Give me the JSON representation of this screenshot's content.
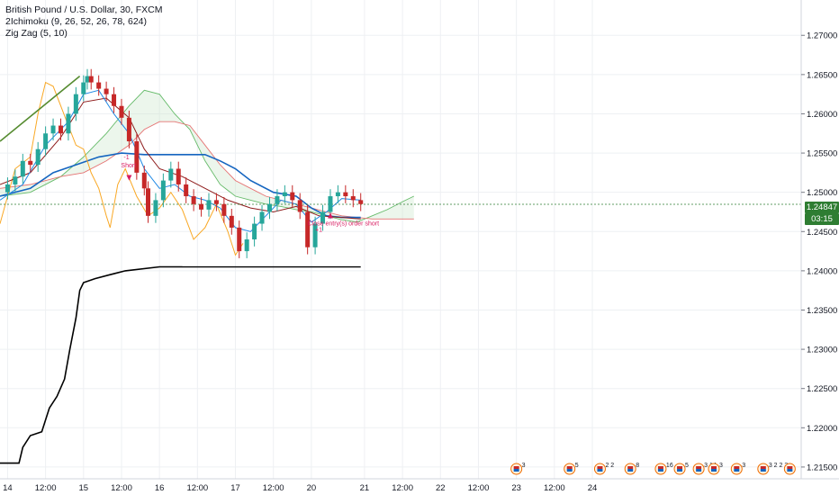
{
  "legend": {
    "symbol": "British Pound / U.S. Dollar, 30, FXCM",
    "ichimoku": "2Ichimoku (9, 26, 52, 26, 78, 624)",
    "zigzag": "Zig Zag (5, 10)"
  },
  "price_tag": {
    "last": "1.24847",
    "countdown": "03:15"
  },
  "annotations": {
    "short_signal": "Short",
    "short_num": "-1",
    "close_label": "Close entry(s) order short",
    "close_num": "+1"
  },
  "colors": {
    "up_candle": "#26a69a",
    "down_candle": "#c62828",
    "tenkan": "#1e88e5",
    "kijun": "#8e1b1b",
    "chikou": "#f9a825",
    "span_a": "#66bb6a",
    "span_b": "#e57373",
    "slow_line": "#1565c0",
    "equity": "#000000",
    "zigzag": "#2e7d32",
    "last_price": "#2e7d32",
    "signal": "#d81b60"
  },
  "events": [
    {
      "x": "20.7",
      "count": "3"
    },
    {
      "x": "21.4",
      "count": "5"
    },
    {
      "x": "21.8",
      "count": "2 2"
    },
    {
      "x": "22.2",
      "count": "8"
    },
    {
      "x": "22.6",
      "count": "16"
    },
    {
      "x": "22.85",
      "count": "5"
    },
    {
      "x": "23.1",
      "count": "3 14"
    },
    {
      "x": "23.3",
      "count": "3"
    },
    {
      "x": "23.6",
      "count": "3"
    },
    {
      "x": "23.95",
      "count": "3 2 2 3"
    },
    {
      "x": "24.3",
      "count": ""
    }
  ],
  "chart_data": {
    "type": "candlestick",
    "title": "British Pound / U.S. Dollar, 30, FXCM",
    "x_unit": "days",
    "xlim": [
      13.9,
      24.45
    ],
    "ylim": [
      1.2135,
      1.2745
    ],
    "y_ticks": [
      "1.27000",
      "1.26500",
      "1.26000",
      "1.25500",
      "1.25000",
      "1.24500",
      "1.24000",
      "1.23500",
      "1.23000",
      "1.22500",
      "1.22000",
      "1.21500"
    ],
    "x_ticks": [
      {
        "x": 14,
        "label": "14"
      },
      {
        "x": 14.5,
        "label": "12:00"
      },
      {
        "x": 15,
        "label": "15"
      },
      {
        "x": 15.5,
        "label": "12:00"
      },
      {
        "x": 16,
        "label": "16"
      },
      {
        "x": 16.5,
        "label": "12:00"
      },
      {
        "x": 17,
        "label": "17"
      },
      {
        "x": 17.5,
        "label": "12:00"
      },
      {
        "x": 18,
        "label": "20"
      },
      {
        "x": 18.7,
        "label": "21"
      },
      {
        "x": 19.2,
        "label": "12:00"
      },
      {
        "x": 19.7,
        "label": "22"
      },
      {
        "x": 20.2,
        "label": "12:00"
      },
      {
        "x": 20.7,
        "label": "23"
      },
      {
        "x": 21.2,
        "label": "12:00"
      },
      {
        "x": 21.7,
        "label": "24"
      }
    ],
    "close_series": [
      [
        13.9,
        1.25
      ],
      [
        14.0,
        1.251
      ],
      [
        14.1,
        1.252
      ],
      [
        14.2,
        1.254
      ],
      [
        14.3,
        1.2535
      ],
      [
        14.4,
        1.2555
      ],
      [
        14.5,
        1.2575
      ],
      [
        14.6,
        1.2585
      ],
      [
        14.7,
        1.2575
      ],
      [
        14.8,
        1.26
      ],
      [
        14.9,
        1.2625
      ],
      [
        15.0,
        1.264
      ],
      [
        15.05,
        1.2648
      ],
      [
        15.1,
        1.264
      ],
      [
        15.2,
        1.2632
      ],
      [
        15.3,
        1.2625
      ],
      [
        15.4,
        1.261
      ],
      [
        15.5,
        1.2595
      ],
      [
        15.6,
        1.2565
      ],
      [
        15.7,
        1.2525
      ],
      [
        15.8,
        1.2505
      ],
      [
        15.85,
        1.247
      ],
      [
        15.95,
        1.249
      ],
      [
        16.05,
        1.2515
      ],
      [
        16.15,
        1.253
      ],
      [
        16.25,
        1.251
      ],
      [
        16.35,
        1.2495
      ],
      [
        16.45,
        1.2485
      ],
      [
        16.55,
        1.2478
      ],
      [
        16.65,
        1.249
      ],
      [
        16.75,
        1.2485
      ],
      [
        16.85,
        1.247
      ],
      [
        16.95,
        1.2455
      ],
      [
        17.05,
        1.2425
      ],
      [
        17.15,
        1.244
      ],
      [
        17.25,
        1.246
      ],
      [
        17.35,
        1.2475
      ],
      [
        17.45,
        1.2485
      ],
      [
        17.55,
        1.2495
      ],
      [
        17.65,
        1.25
      ],
      [
        17.75,
        1.249
      ],
      [
        17.85,
        1.2475
      ],
      [
        17.95,
        1.243
      ],
      [
        18.05,
        1.246
      ],
      [
        18.15,
        1.2475
      ],
      [
        18.25,
        1.2495
      ],
      [
        18.35,
        1.25
      ],
      [
        18.45,
        1.2495
      ],
      [
        18.55,
        1.249
      ],
      [
        18.65,
        1.2485
      ]
    ],
    "tenkan": [
      [
        13.9,
        1.249
      ],
      [
        14.2,
        1.251
      ],
      [
        14.5,
        1.256
      ],
      [
        14.8,
        1.259
      ],
      [
        15.0,
        1.2625
      ],
      [
        15.2,
        1.263
      ],
      [
        15.4,
        1.26
      ],
      [
        15.6,
        1.2575
      ],
      [
        15.8,
        1.253
      ],
      [
        16.0,
        1.2505
      ],
      [
        16.2,
        1.251
      ],
      [
        16.4,
        1.2495
      ],
      [
        16.6,
        1.249
      ],
      [
        16.8,
        1.248
      ],
      [
        17.0,
        1.2455
      ],
      [
        17.2,
        1.245
      ],
      [
        17.4,
        1.247
      ],
      [
        17.6,
        1.249
      ],
      [
        17.8,
        1.2485
      ],
      [
        18.0,
        1.2462
      ],
      [
        18.2,
        1.2475
      ],
      [
        18.4,
        1.2492
      ],
      [
        18.65,
        1.249
      ]
    ],
    "kijun": [
      [
        13.9,
        1.251
      ],
      [
        14.3,
        1.2525
      ],
      [
        14.7,
        1.257
      ],
      [
        15.0,
        1.2615
      ],
      [
        15.3,
        1.262
      ],
      [
        15.6,
        1.2595
      ],
      [
        15.8,
        1.2555
      ],
      [
        16.0,
        1.253
      ],
      [
        16.3,
        1.252
      ],
      [
        16.6,
        1.2505
      ],
      [
        16.9,
        1.249
      ],
      [
        17.2,
        1.248
      ],
      [
        17.5,
        1.2475
      ],
      [
        17.8,
        1.2482
      ],
      [
        18.1,
        1.247
      ],
      [
        18.4,
        1.2468
      ],
      [
        18.65,
        1.2466
      ]
    ],
    "chikou": [
      [
        13.9,
        1.246
      ],
      [
        14.1,
        1.253
      ],
      [
        14.3,
        1.2545
      ],
      [
        14.4,
        1.26
      ],
      [
        14.5,
        1.264
      ],
      [
        14.6,
        1.2635
      ],
      [
        14.7,
        1.261
      ],
      [
        14.8,
        1.2585
      ],
      [
        14.9,
        1.256
      ],
      [
        15.0,
        1.2555
      ],
      [
        15.1,
        1.2525
      ],
      [
        15.2,
        1.2505
      ],
      [
        15.3,
        1.247
      ],
      [
        15.35,
        1.2455
      ],
      [
        15.45,
        1.251
      ],
      [
        15.55,
        1.253
      ],
      [
        15.7,
        1.2495
      ],
      [
        15.85,
        1.247
      ],
      [
        16.0,
        1.248
      ],
      [
        16.15,
        1.25
      ],
      [
        16.3,
        1.2478
      ],
      [
        16.45,
        1.244
      ],
      [
        16.6,
        1.2455
      ],
      [
        16.75,
        1.2485
      ],
      [
        16.9,
        1.245
      ],
      [
        17.0,
        1.242
      ],
      [
        17.1,
        1.2435
      ]
    ],
    "span_a": [
      [
        13.9,
        1.2495
      ],
      [
        14.3,
        1.25
      ],
      [
        14.7,
        1.252
      ],
      [
        15.0,
        1.2545
      ],
      [
        15.3,
        1.2575
      ],
      [
        15.6,
        1.261
      ],
      [
        15.8,
        1.263
      ],
      [
        16.0,
        1.2625
      ],
      [
        16.2,
        1.26
      ],
      [
        16.4,
        1.258
      ],
      [
        16.6,
        1.254
      ],
      [
        16.8,
        1.251
      ],
      [
        17.0,
        1.2495
      ],
      [
        17.2,
        1.249
      ],
      [
        17.4,
        1.2485
      ],
      [
        17.6,
        1.2482
      ],
      [
        17.8,
        1.2478
      ],
      [
        18.0,
        1.2475
      ],
      [
        18.2,
        1.247
      ],
      [
        18.4,
        1.2465
      ],
      [
        18.6,
        1.2462
      ],
      [
        18.8,
        1.247
      ],
      [
        19.0,
        1.2478
      ],
      [
        19.2,
        1.2488
      ],
      [
        19.35,
        1.2495
      ]
    ],
    "span_b": [
      [
        13.9,
        1.2505
      ],
      [
        14.3,
        1.251
      ],
      [
        14.7,
        1.252
      ],
      [
        15.0,
        1.2525
      ],
      [
        15.3,
        1.254
      ],
      [
        15.6,
        1.256
      ],
      [
        15.8,
        1.258
      ],
      [
        16.0,
        1.259
      ],
      [
        16.2,
        1.259
      ],
      [
        16.4,
        1.2585
      ],
      [
        16.6,
        1.256
      ],
      [
        16.8,
        1.2535
      ],
      [
        17.0,
        1.2515
      ],
      [
        17.2,
        1.2505
      ],
      [
        17.4,
        1.2495
      ],
      [
        17.6,
        1.249
      ],
      [
        17.8,
        1.2485
      ],
      [
        18.0,
        1.248
      ],
      [
        18.2,
        1.2475
      ],
      [
        18.4,
        1.247
      ],
      [
        18.6,
        1.2468
      ],
      [
        18.8,
        1.2466
      ],
      [
        19.0,
        1.2466
      ],
      [
        19.35,
        1.2466
      ]
    ],
    "slow_line": [
      [
        13.9,
        1.2495
      ],
      [
        14.3,
        1.2505
      ],
      [
        14.6,
        1.2525
      ],
      [
        14.9,
        1.2535
      ],
      [
        15.2,
        1.2545
      ],
      [
        15.5,
        1.255
      ],
      [
        15.8,
        1.2548
      ],
      [
        16.0,
        1.2548
      ],
      [
        16.3,
        1.2548
      ],
      [
        16.6,
        1.2548
      ],
      [
        16.8,
        1.254
      ],
      [
        17.0,
        1.253
      ],
      [
        17.2,
        1.2515
      ],
      [
        17.5,
        1.25
      ],
      [
        17.8,
        1.2495
      ],
      [
        18.0,
        1.248
      ],
      [
        18.2,
        1.247
      ],
      [
        18.4,
        1.2468
      ],
      [
        18.65,
        1.2468
      ]
    ],
    "zigzag": [
      [
        13.9,
        1.2565
      ],
      [
        14.95,
        1.2648
      ]
    ],
    "support_line": {
      "from": 16.3,
      "to": 18.65,
      "y": 1.2405
    },
    "equity": [
      [
        13.9,
        1.2155
      ],
      [
        14.15,
        1.2155
      ],
      [
        14.2,
        1.2175
      ],
      [
        14.3,
        1.219
      ],
      [
        14.45,
        1.2195
      ],
      [
        14.55,
        1.2225
      ],
      [
        14.65,
        1.224
      ],
      [
        14.75,
        1.2262
      ],
      [
        14.82,
        1.23
      ],
      [
        14.9,
        1.234
      ],
      [
        14.95,
        1.2375
      ],
      [
        15.0,
        1.2385
      ],
      [
        15.15,
        1.239
      ],
      [
        15.35,
        1.2395
      ],
      [
        15.55,
        1.24
      ],
      [
        16.0,
        1.2405
      ],
      [
        16.3,
        1.2405
      ]
    ],
    "last_price": 1.24847
  }
}
